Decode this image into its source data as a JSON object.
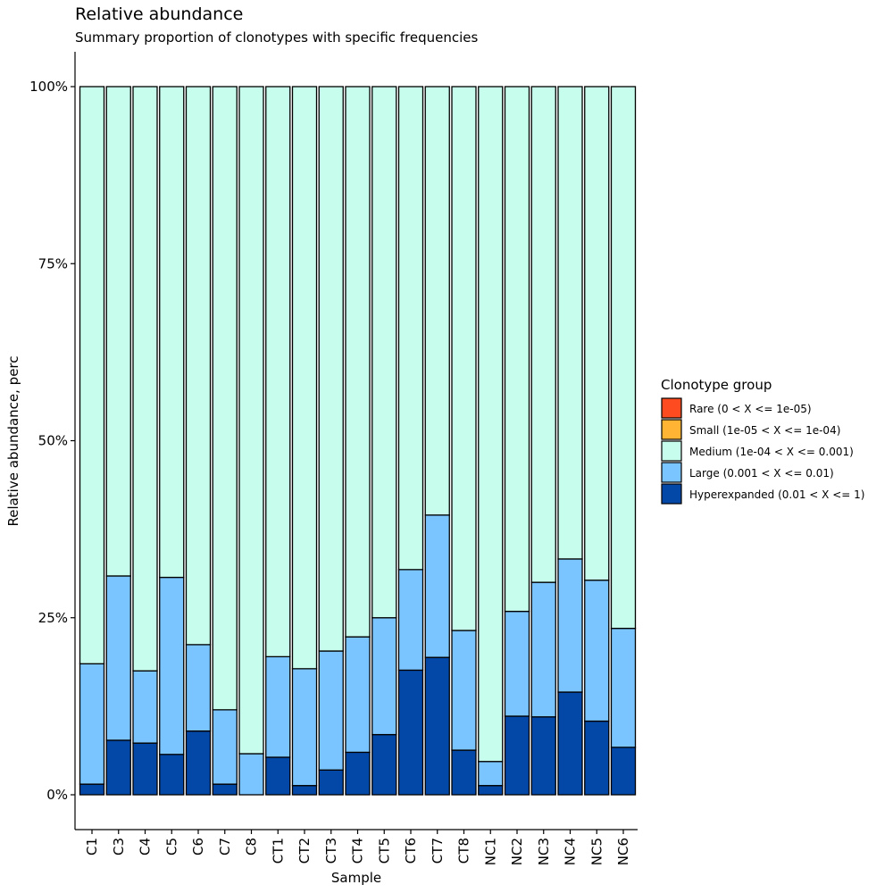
{
  "chart_data": {
    "type": "bar",
    "stacked": true,
    "title": "Relative abundance",
    "subtitle": "Summary proportion of clonotypes with specific frequencies",
    "xlabel": "Sample",
    "ylabel": "Relative abundance, perc",
    "ylim": [
      0,
      1
    ],
    "yticks": [
      {
        "value": 0,
        "label": "0%"
      },
      {
        "value": 0.25,
        "label": "25%"
      },
      {
        "value": 0.5,
        "label": "50%"
      },
      {
        "value": 0.75,
        "label": "75%"
      },
      {
        "value": 1,
        "label": "100%"
      }
    ],
    "categories": [
      "C1",
      "C3",
      "C4",
      "C5",
      "C6",
      "C7",
      "C8",
      "CT1",
      "CT2",
      "CT3",
      "CT4",
      "CT5",
      "CT6",
      "CT7",
      "CT8",
      "NC1",
      "NC2",
      "NC3",
      "NC4",
      "NC5",
      "NC6"
    ],
    "legend": {
      "title": "Clonotype group",
      "position": "right"
    },
    "grid": false,
    "series": [
      {
        "name": "Rare (0 < X <= 1e-05)",
        "color": "#FF4B20",
        "values": [
          0,
          0,
          0,
          0,
          0,
          0,
          0,
          0,
          0,
          0,
          0,
          0,
          0,
          0,
          0,
          0,
          0,
          0,
          0,
          0,
          0
        ]
      },
      {
        "name": "Small (1e-05 < X <= 1e-04)",
        "color": "#FFB433",
        "values": [
          0,
          0,
          0,
          0,
          0,
          0,
          0,
          0,
          0,
          0,
          0,
          0,
          0,
          0,
          0,
          0,
          0,
          0,
          0,
          0,
          0
        ]
      },
      {
        "name": "Medium (1e-04 < X <= 0.001)",
        "color": "#C6FDEC",
        "values": [
          0.815,
          0.691,
          0.825,
          0.693,
          0.788,
          0.88,
          0.942,
          0.805,
          0.822,
          0.797,
          0.777,
          0.75,
          0.682,
          0.605,
          0.768,
          0.953,
          0.741,
          0.7,
          0.667,
          0.697,
          0.765
        ]
      },
      {
        "name": "Large (0.001 < X <= 0.01)",
        "color": "#7AC5FF",
        "values": [
          0.17,
          0.232,
          0.102,
          0.25,
          0.122,
          0.105,
          0.058,
          0.142,
          0.165,
          0.168,
          0.163,
          0.165,
          0.142,
          0.201,
          0.169,
          0.034,
          0.148,
          0.19,
          0.188,
          0.199,
          0.168
        ]
      },
      {
        "name": "Hyperexpanded (0.01 < X <= 1)",
        "color": "#0348A6",
        "values": [
          0.015,
          0.077,
          0.073,
          0.057,
          0.09,
          0.015,
          0.0,
          0.053,
          0.013,
          0.035,
          0.06,
          0.085,
          0.176,
          0.194,
          0.063,
          0.013,
          0.111,
          0.11,
          0.145,
          0.104,
          0.067
        ]
      }
    ]
  }
}
